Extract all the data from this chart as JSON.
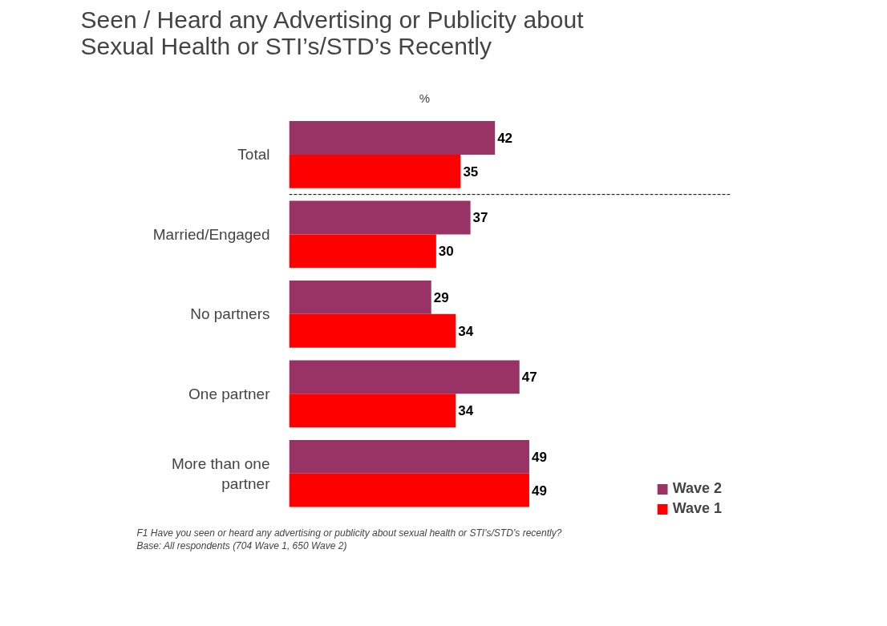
{
  "chart_data": {
    "type": "bar",
    "orientation": "horizontal",
    "title": "Seen / Heard any Advertising or Publicity about\nSexual Health or STI’s/STD’s  Recently",
    "categories": [
      "Total",
      "Married/Engaged",
      "No partners",
      "One partner",
      "More than one\npartner"
    ],
    "series": [
      {
        "name": "Wave 2",
        "color": "#993366",
        "values": [
          42,
          37,
          29,
          47,
          49
        ]
      },
      {
        "name": "Wave 1",
        "color": "#ff0000",
        "values": [
          35,
          30,
          34,
          34,
          49
        ]
      }
    ],
    "xlim": [
      0,
      90
    ],
    "tick_labels": "y",
    "data_labels": true,
    "grid": false,
    "legend": "bottom right",
    "annotations": [
      "%",
      "F1 Have you seen or heard any advertising or publicity about sexual health or STI’s/STD’s recently?",
      "Base:  All respondents (704 Wave 1, 650 Wave 2)"
    ]
  }
}
